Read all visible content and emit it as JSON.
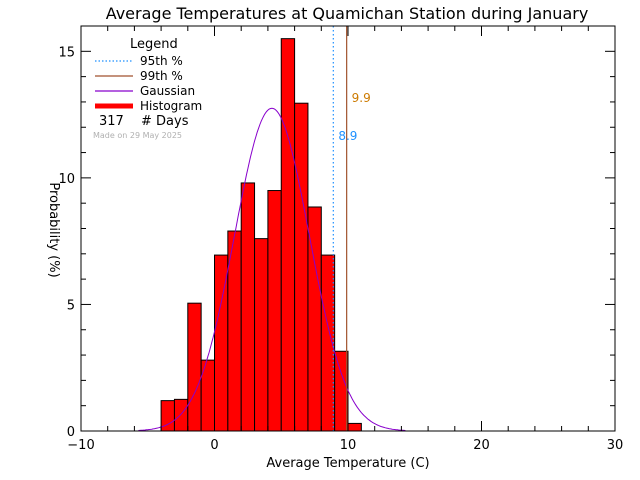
{
  "chart_data": {
    "type": "bar",
    "title": "Average Temperatures at Quamichan Station during January",
    "xlabel": "Average Temperature (C)",
    "ylabel": "Probability (%)",
    "xlim": [
      -10,
      30
    ],
    "ylim": [
      0,
      16
    ],
    "x_ticks": [
      -10,
      0,
      10,
      20,
      30
    ],
    "y_ticks": [
      0,
      5,
      10,
      15
    ],
    "bin_width": 1,
    "bins": [
      {
        "x0": -4,
        "value": 1.2
      },
      {
        "x0": -3,
        "value": 1.25
      },
      {
        "x0": -2,
        "value": 5.05
      },
      {
        "x0": -1,
        "value": 2.8
      },
      {
        "x0": 0,
        "value": 6.95
      },
      {
        "x0": 1,
        "value": 7.9
      },
      {
        "x0": 2,
        "value": 9.8
      },
      {
        "x0": 3,
        "value": 7.6
      },
      {
        "x0": 4,
        "value": 9.5
      },
      {
        "x0": 5,
        "value": 15.5
      },
      {
        "x0": 6,
        "value": 12.95
      },
      {
        "x0": 7,
        "value": 8.85
      },
      {
        "x0": 8,
        "value": 6.95
      },
      {
        "x0": 9,
        "value": 3.15
      },
      {
        "x0": 10,
        "value": 0.3
      }
    ],
    "gaussian": {
      "mean": 4.3,
      "sd": 2.8,
      "peak": 12.75
    },
    "percentile_95": {
      "value": 8.9,
      "label": "8.9"
    },
    "percentile_99": {
      "value": 9.9,
      "label": "9.9"
    },
    "legend": {
      "title": "Legend",
      "entries": [
        "95th %",
        "99th %",
        "Gaussian",
        "Histogram"
      ],
      "days_count": "317",
      "days_label": "# Days",
      "made_on": "Made on 29 May 2025",
      "placement": "top-left"
    },
    "colors": {
      "histogram": "#ff0000",
      "gaussian": "#8800cc",
      "p95": "#1e90ff",
      "p99": "#a0522d",
      "p99_label": "#cc7a00",
      "axes": "#000000",
      "made_on": "#b0b0b0"
    }
  }
}
